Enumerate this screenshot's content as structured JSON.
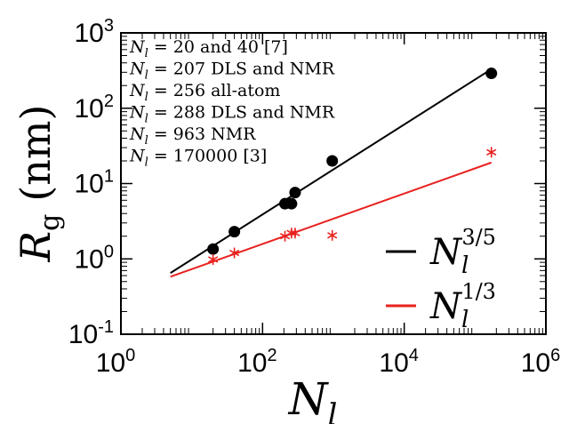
{
  "chart_data": {
    "type": "scatter",
    "x_scale": "log",
    "y_scale": "log",
    "xlim": [
      1,
      1000000
    ],
    "ylim": [
      0.1,
      1000
    ],
    "x_ticks": [
      {
        "value": 1,
        "base": "10",
        "exp": "0"
      },
      {
        "value": 100,
        "base": "10",
        "exp": "2"
      },
      {
        "value": 10000,
        "base": "10",
        "exp": "4"
      },
      {
        "value": 1000000,
        "base": "10",
        "exp": "6"
      }
    ],
    "y_ticks": [
      {
        "value": 0.1,
        "base": "10",
        "exp": "-1"
      },
      {
        "value": 1,
        "base": "10",
        "exp": "0"
      },
      {
        "value": 10,
        "base": "10",
        "exp": "1"
      },
      {
        "value": 100,
        "base": "10",
        "exp": "2"
      },
      {
        "value": 1000,
        "base": "10",
        "exp": "3"
      }
    ],
    "xlabel": {
      "main": "N",
      "sub": "l"
    },
    "ylabel": {
      "main": "R",
      "sub": "g",
      "unit": "(nm)"
    },
    "annotations": [
      {
        "lhs": "N",
        "sub": "l",
        "text": " = 20 and 40 [7]"
      },
      {
        "lhs": "N",
        "sub": "l",
        "text": " = 207 DLS and NMR"
      },
      {
        "lhs": "N",
        "sub": "l",
        "text": " = 256 all-atom"
      },
      {
        "lhs": "N",
        "sub": "l",
        "text": " = 288 DLS and NMR"
      },
      {
        "lhs": "N",
        "sub": "l",
        "text": " = 963 NMR"
      },
      {
        "lhs": "N",
        "sub": "l",
        "text": " = 170000 [3]"
      }
    ],
    "series": [
      {
        "marker": "circle",
        "color": "#000000",
        "x": [
          20,
          40,
          207,
          256,
          288,
          963,
          170000
        ],
        "y": [
          1.35,
          2.3,
          5.4,
          5.4,
          7.6,
          20,
          290
        ]
      },
      {
        "marker": "asterisk",
        "color": "#e8221f",
        "x": [
          20,
          40,
          207,
          256,
          288,
          963,
          170000
        ],
        "y": [
          0.98,
          1.2,
          2.0,
          2.2,
          2.2,
          2.05,
          26
        ]
      }
    ],
    "fits": [
      {
        "name": "N_l^{3/5}",
        "main": "N",
        "sub": "l",
        "sup": "3/5",
        "color": "#000000",
        "x": [
          5,
          170000
        ],
        "y": [
          0.65,
          330
        ]
      },
      {
        "name": "N_l^{1/3}",
        "main": "N",
        "sub": "l",
        "sup": "1/3",
        "color": "#e8221f",
        "x": [
          5,
          170000
        ],
        "y": [
          0.58,
          19
        ]
      }
    ],
    "legend": "bottom-right"
  }
}
